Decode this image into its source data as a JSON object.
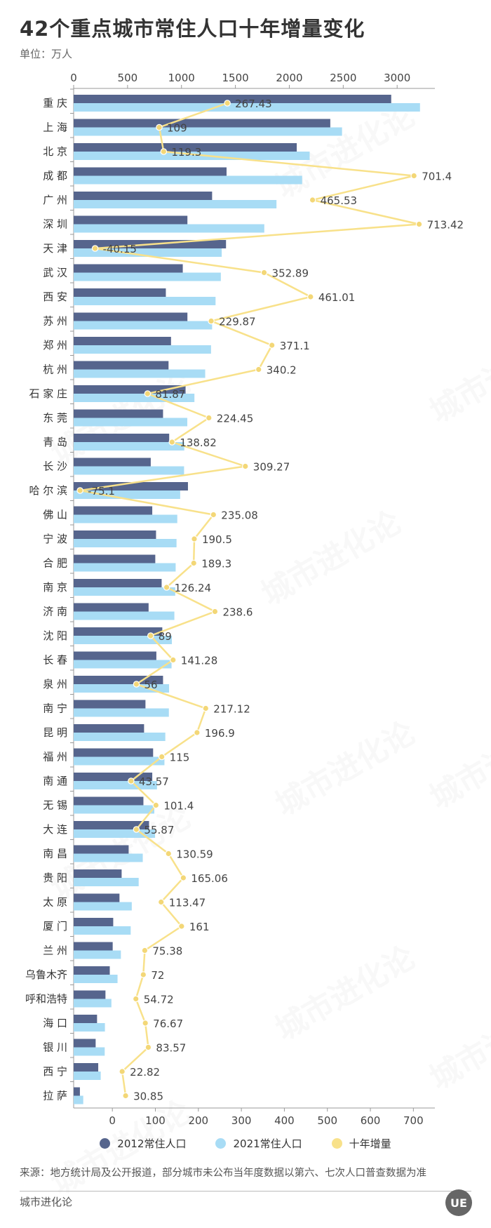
{
  "title": "42个重点城市常住人口十年增量变化",
  "unit": "单位：万人",
  "legend": {
    "s2012": "2012常住人口",
    "s2021": "2021常住人口",
    "growth": "十年增量"
  },
  "source": "来源：地方统计局及公开报道，部分城市未公布当年度数据以第六、七次人口普查数据为准",
  "brand": "城市进化论",
  "logo_text": "UE",
  "watermark": "城市进化论",
  "colors": {
    "s2012": "#56658d",
    "s2021": "#a8dcf5",
    "growth": "#f8e18a",
    "growth_dot": "#f3d777",
    "axis": "#999999",
    "label": "#444444"
  },
  "chart_data": {
    "type": "bar",
    "categories": [
      "重 庆",
      "上 海",
      "北 京",
      "成 都",
      "广 州",
      "深 圳",
      "天 津",
      "武 汉",
      "西 安",
      "苏 州",
      "郑 州",
      "杭 州",
      "石 家 庄",
      "东 莞",
      "青 岛",
      "长 沙",
      "哈 尔 滨",
      "佛 山",
      "宁 波",
      "合 肥",
      "南 京",
      "济 南",
      "沈 阳",
      "长 春",
      "泉 州",
      "南 宁",
      "昆 明",
      "福 州",
      "南 通",
      "无 锡",
      "大 连",
      "南 昌",
      "贵 阳",
      "太 原",
      "厦 门",
      "兰 州",
      "乌鲁木齐",
      "呼和浩特",
      "海 口",
      "银 川",
      "西 宁",
      "拉 萨"
    ],
    "series": [
      {
        "name": "2012常住人口",
        "axis": "top",
        "values": [
          2945,
          2380,
          2069,
          1418,
          1284,
          1055,
          1413,
          1012,
          855,
          1055,
          903,
          880,
          1038,
          829,
          886,
          715,
          1060,
          729,
          764,
          757,
          816,
          695,
          822,
          767,
          829,
          666,
          653,
          737,
          729,
          647,
          699,
          510,
          445,
          425,
          367,
          362,
          335,
          295,
          217,
          204,
          228,
          58
        ]
      },
      {
        "name": "2021常住人口",
        "axis": "top",
        "values": [
          3212,
          2489,
          2189,
          2119,
          1881,
          1768,
          1373,
          1365,
          1316,
          1284,
          1274,
          1220,
          1120,
          1054,
          1026,
          1024,
          988,
          961,
          954,
          946,
          942,
          934,
          911,
          908,
          885,
          883,
          850,
          842,
          773,
          748,
          755,
          641,
          603,
          539,
          529,
          438,
          407,
          350,
          290,
          288,
          251,
          89
        ]
      },
      {
        "name": "十年增量",
        "axis": "bottom",
        "values": [
          267.43,
          109,
          119.3,
          701.4,
          465.53,
          713.42,
          -40.15,
          352.89,
          461.01,
          229.87,
          371.1,
          340.2,
          81.87,
          224.45,
          138.82,
          309.27,
          -75.1,
          235.08,
          190.5,
          189.3,
          126.24,
          238.6,
          89,
          141.28,
          56,
          217.12,
          196.9,
          115,
          43.57,
          101.4,
          55.87,
          130.59,
          165.06,
          113.47,
          161,
          75.38,
          72,
          54.72,
          76.67,
          83.57,
          22.82,
          30.85
        ],
        "labels": [
          "267.43",
          "109",
          "119.3",
          "701.4",
          "465.53",
          "713.42",
          "-40.15",
          "352.89",
          "461.01",
          "229.87",
          "371.1",
          "340.2",
          "81.87",
          "224.45",
          "138.82",
          "309.27",
          "-75.1",
          "235.08",
          "190.5",
          "189.3",
          "126.24",
          "238.6",
          "89",
          "141.28",
          "56",
          "217.12",
          "196.9",
          "115",
          "43.57",
          "101.4",
          "55.87",
          "130.59",
          "165.06",
          "113.47",
          "161",
          "75.38",
          "72",
          "54.72",
          "76.67",
          "83.57",
          "22.82",
          "30.85"
        ]
      }
    ],
    "top_axis": {
      "min": 0,
      "max": 3350,
      "ticks": [
        0,
        500,
        1000,
        1500,
        2000,
        2500,
        3000
      ]
    },
    "bottom_axis": {
      "min": -90,
      "max": 750,
      "ticks": [
        0,
        100,
        200,
        300,
        400,
        500,
        600,
        700
      ]
    },
    "legend_position": "bottom",
    "grid": false
  }
}
